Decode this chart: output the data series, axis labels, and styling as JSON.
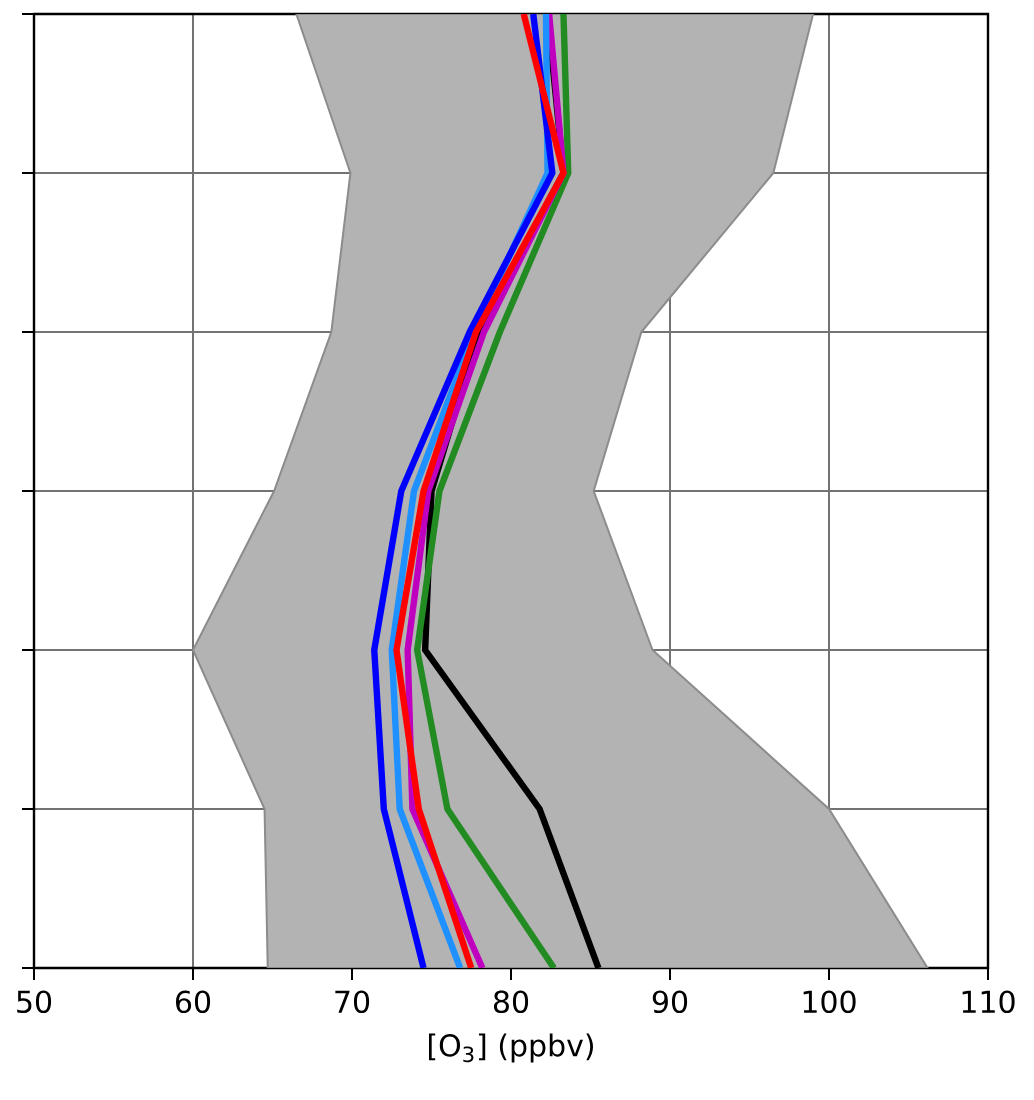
{
  "chart_data": {
    "type": "line",
    "orientation": "horizontal",
    "xlabel": "[O$_{3}$] (ppbv)",
    "xlim": [
      50,
      110
    ],
    "xticks": [
      50,
      60,
      70,
      80,
      90,
      100,
      110
    ],
    "categories": [
      null,
      null,
      null,
      null,
      null,
      null,
      null
    ],
    "grid": true,
    "line_style": "solid",
    "marker": "none",
    "series": [
      {
        "type": "area",
        "color": "#b3b3b3",
        "values": [
          null,
          null,
          null,
          null,
          null,
          null,
          null
        ],
        "lower": [
          66.5,
          69.9,
          68.7,
          65.1,
          60,
          64.5,
          64.7
        ],
        "upper": [
          99,
          96.5,
          88.2,
          85.2,
          88.9,
          100,
          106.2
        ]
      },
      {
        "color": "#000000",
        "values": [
          82.3,
          83.3,
          78,
          75,
          74.6,
          81.8,
          85.5
        ]
      },
      {
        "color": "#228b22",
        "values": [
          83.3,
          83.6,
          79.3,
          75.5,
          74.1,
          76,
          82.7
        ]
      },
      {
        "color": "#bf00bf",
        "values": [
          82.4,
          83.3,
          78.3,
          74.8,
          73.5,
          73.8,
          78.2
        ]
      },
      {
        "color": "#1e90ff",
        "values": [
          82.2,
          82.3,
          77.7,
          73.9,
          72.5,
          73,
          76.8
        ]
      },
      {
        "color": "#0000ff",
        "values": [
          81.4,
          82.6,
          77.4,
          73.1,
          71.4,
          72,
          74.5
        ]
      },
      {
        "color": "#ff0000",
        "values": [
          80.8,
          83.3,
          77.8,
          74.5,
          72.8,
          74.2,
          77.5
        ]
      }
    ]
  }
}
